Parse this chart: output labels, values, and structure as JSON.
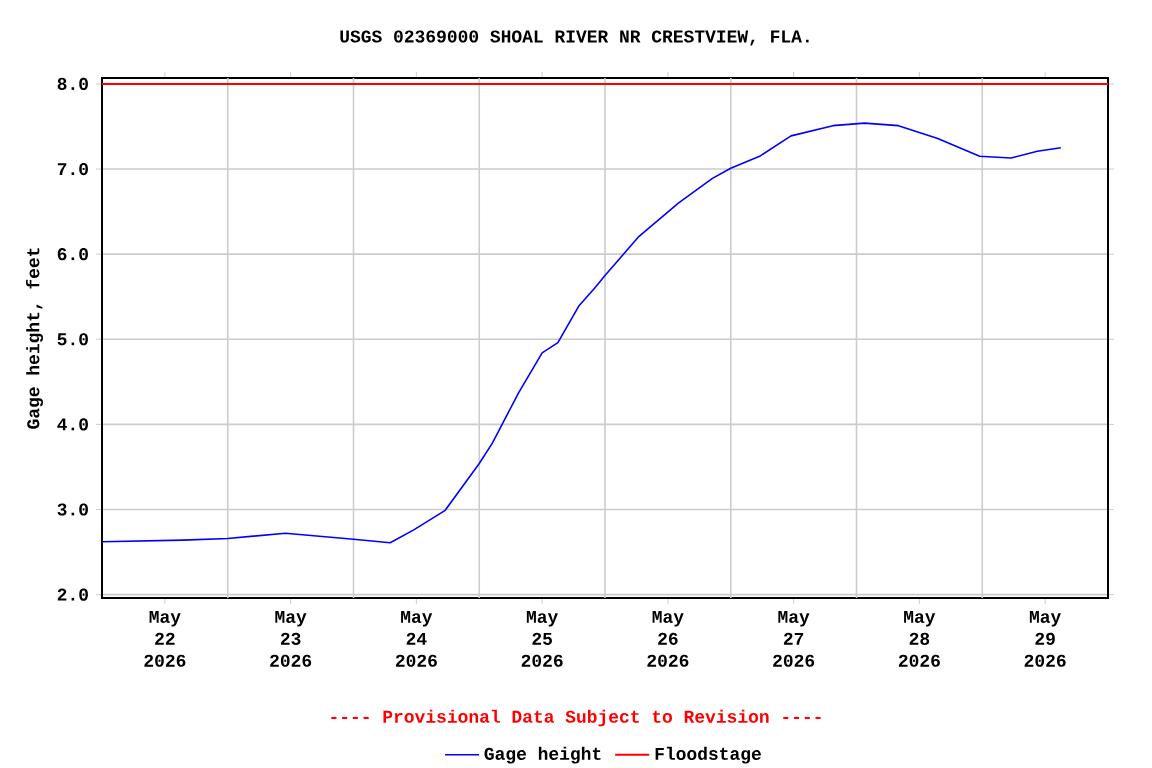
{
  "chart_data": {
    "type": "line",
    "title": "USGS 02369000 SHOAL RIVER NR CRESTVIEW, FLA.",
    "ylabel": "Gage height, feet",
    "annotations": [
      "---- Provisional Data Subject to Revision ----"
    ],
    "xlim": [
      "2026-05-22T00:00",
      "2026-05-30T00:00"
    ],
    "xticks": [
      {
        "value": "2026-05-22T12:00",
        "label": "May 22 2026"
      },
      {
        "value": "2026-05-23T12:00",
        "label": "May 23 2026"
      },
      {
        "value": "2026-05-24T12:00",
        "label": "May 24 2026"
      },
      {
        "value": "2026-05-25T12:00",
        "label": "May 25 2026"
      },
      {
        "value": "2026-05-26T12:00",
        "label": "May 26 2026"
      },
      {
        "value": "2026-05-27T12:00",
        "label": "May 27 2026"
      },
      {
        "value": "2026-05-28T12:00",
        "label": "May 28 2026"
      },
      {
        "value": "2026-05-29T12:00",
        "label": "May 29 2026"
      },
      {
        "value": "2026-05-23T00:00",
        "label": null
      },
      {
        "value": "2026-05-24T00:00",
        "label": null
      },
      {
        "value": "2026-05-25T00:00",
        "label": null
      },
      {
        "value": "2026-05-26T00:00",
        "label": null
      },
      {
        "value": "2026-05-27T00:00",
        "label": null
      },
      {
        "value": "2026-05-28T00:00",
        "label": null
      },
      {
        "value": "2026-05-29T00:00",
        "label": null
      }
    ],
    "ylim": [
      1.96,
      8.07
    ],
    "yticks": [
      {
        "value": 2,
        "label": "2.0"
      },
      {
        "value": 3,
        "label": "3.0"
      },
      {
        "value": 4,
        "label": "4.0"
      },
      {
        "value": 5,
        "label": "5.0"
      },
      {
        "value": 6,
        "label": "6.0"
      },
      {
        "value": 7,
        "label": "7.0"
      },
      {
        "value": 8,
        "label": "8.0"
      }
    ],
    "grid": true,
    "legend": "bottom",
    "ref_lines": [
      {
        "axis": "y",
        "value": 8.0,
        "label": "Floodstage",
        "color": "#ff0000"
      }
    ],
    "series": [
      {
        "name": "Gage height",
        "color": "#0000ff",
        "x": [
          "2026-05-22T00:00",
          "2026-05-22T15:30",
          "2026-05-23T00:00",
          "2026-05-23T11:00",
          "2026-05-24T00:00",
          "2026-05-24T07:00",
          "2026-05-24T11:30",
          "2026-05-24T17:30",
          "2026-05-25T00:00",
          "2026-05-25T02:30",
          "2026-05-25T07:30",
          "2026-05-25T12:00",
          "2026-05-25T15:00",
          "2026-05-25T19:00",
          "2026-05-25T22:00",
          "2026-05-26T00:00",
          "2026-05-26T06:30",
          "2026-05-26T14:00",
          "2026-05-26T20:30",
          "2026-05-27T00:00",
          "2026-05-27T05:30",
          "2026-05-27T11:30",
          "2026-05-27T19:30",
          "2026-05-28T01:30",
          "2026-05-28T08:00",
          "2026-05-28T15:30",
          "2026-05-28T23:30",
          "2026-05-29T05:30",
          "2026-05-29T10:30",
          "2026-05-29T15:00"
        ],
        "values": [
          2.62,
          2.64,
          2.66,
          2.72,
          2.65,
          2.61,
          2.76,
          2.99,
          3.54,
          3.78,
          4.37,
          4.84,
          4.96,
          5.39,
          5.6,
          5.75,
          6.21,
          6.6,
          6.89,
          7.01,
          7.15,
          7.39,
          7.51,
          7.54,
          7.51,
          7.36,
          7.15,
          7.13,
          7.21,
          7.25
        ]
      }
    ]
  }
}
